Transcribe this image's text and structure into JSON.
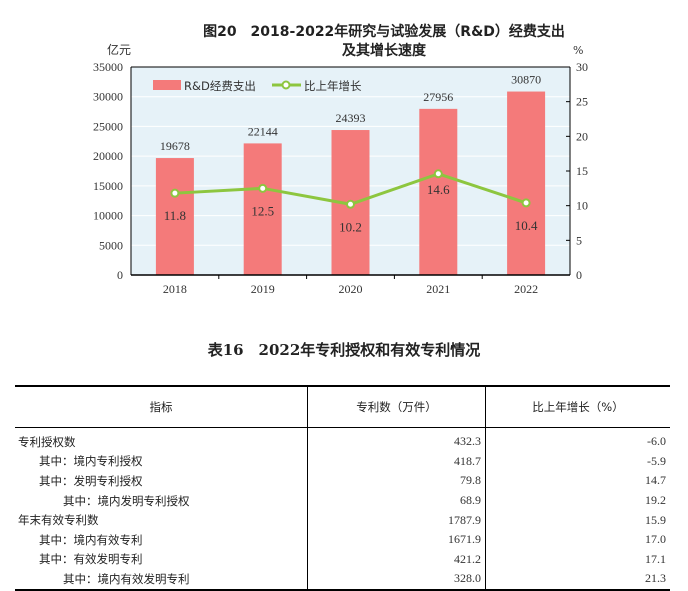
{
  "chart_data": {
    "type": "bar+line",
    "title": "图20　2018-2022年研究与试验发展（R&D）经费支出",
    "subtitle": "及其增长速度",
    "ylabel_left": "亿元",
    "ylabel_right": "%",
    "categories": [
      "2018",
      "2019",
      "2020",
      "2021",
      "2022"
    ],
    "ylim_left": [
      0,
      35000
    ],
    "yticks_left": [
      "0",
      "5000",
      "10000",
      "15000",
      "20000",
      "25000",
      "30000",
      "35000"
    ],
    "ylim_right": [
      0,
      30
    ],
    "yticks_right": [
      "0",
      "5",
      "10",
      "15",
      "20",
      "25",
      "30"
    ],
    "series": [
      {
        "name": "R&D经费支出",
        "type": "bar",
        "axis": "left",
        "values": [
          19678,
          22144,
          24393,
          27956,
          30870
        ],
        "labels": [
          "19678",
          "22144",
          "24393",
          "27956",
          "30870"
        ],
        "color": "#f47a7a"
      },
      {
        "name": "比上年增长",
        "type": "line",
        "axis": "right",
        "values": [
          11.8,
          12.5,
          10.2,
          14.6,
          10.4
        ],
        "labels": [
          "11.8",
          "12.5",
          "10.2",
          "14.6",
          "10.4"
        ],
        "color": "#8dc63f"
      }
    ],
    "legend": "top-left",
    "grid": true,
    "background": "#e6f2f8"
  },
  "table": {
    "title": "表16　2022年专利授权和有效专利情况",
    "headers": [
      "指标",
      "专利数（万件）",
      "比上年增长（%）"
    ],
    "rows": [
      {
        "label": "专利授权数",
        "indent": 0,
        "count": "432.3",
        "growth": "-6.0"
      },
      {
        "label": "其中：境内专利授权",
        "indent": 1,
        "count": "418.7",
        "growth": "-5.9"
      },
      {
        "label": "其中：发明专利授权",
        "indent": 1,
        "count": "79.8",
        "growth": "14.7"
      },
      {
        "label": "其中：境内发明专利授权",
        "indent": 2,
        "count": "68.9",
        "growth": "19.2"
      },
      {
        "label": "年末有效专利数",
        "indent": 0,
        "count": "1787.9",
        "growth": "15.9"
      },
      {
        "label": "其中：境内有效专利",
        "indent": 1,
        "count": "1671.9",
        "growth": "17.0"
      },
      {
        "label": "其中：有效发明专利",
        "indent": 1,
        "count": "421.2",
        "growth": "17.1"
      },
      {
        "label": "其中：境内有效发明专利",
        "indent": 2,
        "count": "328.0",
        "growth": "21.3"
      }
    ]
  }
}
